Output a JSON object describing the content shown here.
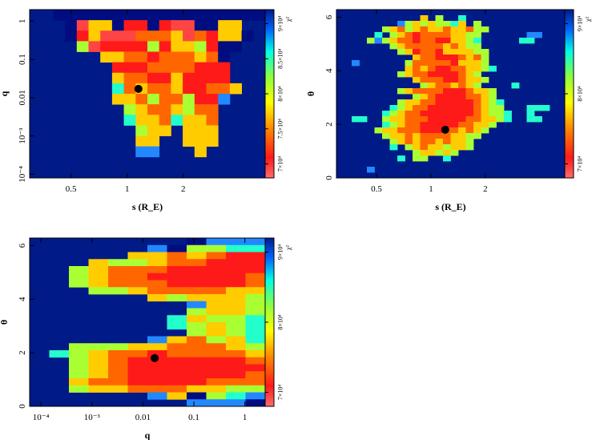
{
  "chart_data": [
    {
      "type": "heatmap",
      "id": "panel-s-q",
      "xlabel": "s (R_E)",
      "ylabel": "q",
      "x_scale": "log",
      "xlim": [
        0.3,
        5.5
      ],
      "y_scale": "log",
      "ylim": [
        8e-05,
        2.0
      ],
      "x_ticks": [
        {
          "v": 0.5,
          "label": "0.5"
        },
        {
          "v": 1,
          "label": "1"
        },
        {
          "v": 2,
          "label": "2"
        }
      ],
      "y_ticks": [
        {
          "v": 1,
          "label": "1"
        },
        {
          "v": 0.1,
          "label": "0.1"
        },
        {
          "v": 0.01,
          "label": "0.01"
        },
        {
          "v": 0.001,
          "label": "10⁻³"
        },
        {
          "v": 0.0001,
          "label": "10⁻⁴"
        }
      ],
      "best_fit": {
        "x": 1.15,
        "y": 0.017
      },
      "colorbar": {
        "label": "χ²",
        "range": [
          68000,
          92000
        ],
        "ticks": [
          {
            "v": 70000,
            "label": "7×10⁴"
          },
          {
            "v": 75000,
            "label": "7.5×10⁴"
          },
          {
            "v": 80000,
            "label": "8×10⁴"
          },
          {
            "v": 85000,
            "label": "8.5×10⁴"
          },
          {
            "v": 90000,
            "label": "9×10⁴"
          }
        ]
      },
      "nx": 20,
      "ny": 16,
      "grid_rows_top_to_bottom": [
        "..xxxxxxxxxxxxxxxxxx",
        "...xgccxaaxaggxxcc..",
        "...xacgggbbbcgbaccx.",
        "....dgaaaadaccdaxx..",
        "......ccbbabbbcbx...",
        ".......aaabbbbaaa...",
        ".......cbbaacaaaa...",
        ".......ebcbbcaabbc..",
        ".......ccbdbbdaaf...",
        "........dcbbcdbb....",
        "........eccbeccb....",
        ".........dcc.ccc....",
        ".........cc..ccc....",
        ".........ff...c.....",
        "...................",
        "...................."
      ]
    },
    {
      "type": "heatmap",
      "id": "panel-s-theta",
      "xlabel": "s (R_E)",
      "ylabel": "θ",
      "x_scale": "log",
      "xlim": [
        0.3,
        5.5
      ],
      "y_scale": "linear",
      "ylim": [
        0,
        6.283
      ],
      "x_ticks": [
        {
          "v": 0.5,
          "label": "0.5"
        },
        {
          "v": 1,
          "label": "1"
        },
        {
          "v": 2,
          "label": "2"
        }
      ],
      "y_ticks": [
        {
          "v": 0,
          "label": "0"
        },
        {
          "v": 2,
          "label": "2"
        },
        {
          "v": 4,
          "label": "4"
        },
        {
          "v": 6,
          "label": "6"
        }
      ],
      "best_fit": {
        "x": 1.2,
        "y": 1.8
      },
      "colorbar": {
        "label": "χ²",
        "range": [
          68000,
          92000
        ],
        "ticks": [
          {
            "v": 70000,
            "label": "7×10⁴"
          },
          {
            "v": 80000,
            "label": "8×10⁴"
          },
          {
            "v": 90000,
            "label": "9×10⁴"
          }
        ]
      },
      "nx": 30,
      "ny": 30,
      "grid_rows_top_to_bottom": [
        "..............................",
        "...........c.d..e.............",
        "........fdcdcddec.d...........",
        "......dcbdcbccbccbdd..........",
        ".....e.dcbabbbbccdd......ff...",
        "....dfdcbbabbaaccde.....ee....",
        ".......dcbbbbbcbcdd...........",
        "........dcabbaccccdd..........",
        "..........cbbaaabcbd..........",
        "..f......dbbbbbacccd..........",
        ".........cbcbaabbccde.........",
        "........dcbbaaaabcd...........",
        "..........cbbbaabccd..........",
        "...........dcbbcbcd....e......",
        "........dcbbbbaaabccd.........",
        "..........dcbaaaabbcd.........",
        "........dccbbaaaaabcde........",
        ".......edcbbaaaaaabcdd...eee..",
        "......edcbbaaaaaaabcdde..e....",
        "..ee..dccbbbaaaaabbccde..ee...",
        "......edcbbaaaaabbccd.........",
        ".....dccbbbaaabbcbcd..........",
        "......dccbcbbbbccdd...........",
        ".......dcbcbbcbccd............",
        ".......e.dcbccdccd............",
        "..........dccdcd..............",
        "........e.dd..e...............",
        "..............................",
        "....f.........................",
        ".............................."
      ]
    },
    {
      "type": "heatmap",
      "id": "panel-q-theta",
      "xlabel": "q",
      "ylabel": "θ",
      "x_scale": "log",
      "xlim": [
        6e-05,
        2.5
      ],
      "y_scale": "linear",
      "ylim": [
        0,
        6.283
      ],
      "x_ticks": [
        {
          "v": 0.0001,
          "label": "10⁻⁴"
        },
        {
          "v": 0.001,
          "label": "10⁻³"
        },
        {
          "v": 0.01,
          "label": "0.01"
        },
        {
          "v": 0.1,
          "label": "0.1"
        },
        {
          "v": 1,
          "label": "1"
        }
      ],
      "y_ticks": [
        {
          "v": 0,
          "label": "0"
        },
        {
          "v": 2,
          "label": "2"
        },
        {
          "v": 4,
          "label": "4"
        },
        {
          "v": 6,
          "label": "6"
        }
      ],
      "best_fit": {
        "x": 0.017,
        "y": 1.8
      },
      "colorbar": {
        "label": "χ²",
        "range": [
          68000,
          92000
        ],
        "ticks": [
          {
            "v": 70000,
            "label": "7×10⁴"
          },
          {
            "v": 80000,
            "label": "8×10⁴"
          },
          {
            "v": 90000,
            "label": "9×10⁴"
          }
        ]
      },
      "nx": 12,
      "ny": 24,
      "grid_rows_top_to_bottom": [
        "........xfff",
        "......fxddee",
        ".....ccbcbaa",
        "...cddcbbaaa",
        "..dcbbbaaaaa",
        "..dcbbaaaaab",
        "..dcbbbaaaab",
        "...ddcbbbbcc",
        "......cdcccd",
        "........fccd",
        "........dccd",
        ".......ecdde",
        ".......edcde",
        "........dcde",
        "......fcbdce",
        "..dddccbbbcd",
        ".edcbbabbbbc",
        "..dcbaaaaaab",
        "..dcbaaaaaaa",
        "..dcbaaaaaab",
        "..cbbaaaabbb",
        "..dccbbbccdd",
        "......fcxdef",
        "........fffx"
      ]
    }
  ]
}
